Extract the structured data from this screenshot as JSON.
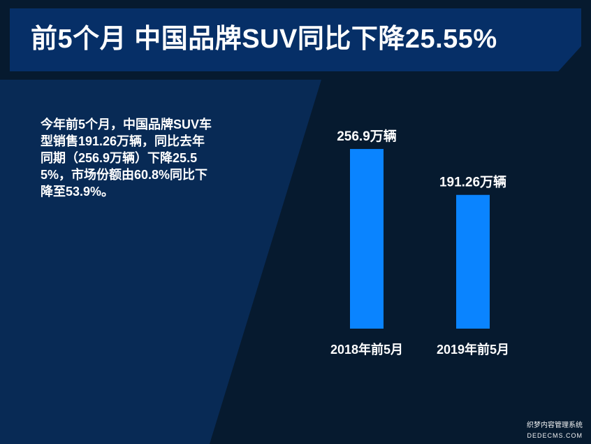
{
  "title": "前5个月 中国品牌SUV同比下降25.55%",
  "summary": "今年前5个月，中国品牌SUV车型销售191.26万辆，同比去年同期（256.9万辆）下降25.55%，市场份额由60.8%同比下降至53.9%。",
  "colors": {
    "bar": "#0a84ff",
    "title_banner": "#062f67",
    "left_panel": "#082a55",
    "background": "#061a2f"
  },
  "chart_data": {
    "type": "bar",
    "categories": [
      "2018年前5月",
      "2019年前5月"
    ],
    "values": [
      256.9,
      191.26
    ],
    "data_labels": [
      "256.9万辆",
      "191.26万辆"
    ],
    "title": "",
    "xlabel": "",
    "ylabel": "",
    "ylim": [
      0,
      260
    ]
  },
  "watermark": {
    "cn": "织梦内容管理系统",
    "en": "DEDECMS.COM"
  }
}
